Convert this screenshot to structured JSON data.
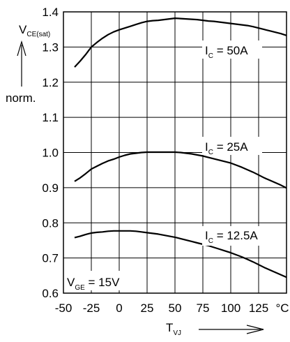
{
  "chart_data": {
    "type": "line",
    "x_ticks": [
      "-50",
      "-25",
      "0",
      "25",
      "50",
      "75",
      "100",
      "125"
    ],
    "x_unit": "°C",
    "y_ticks": [
      "0.6",
      "0.7",
      "0.8",
      "0.9",
      "1.0",
      "1.1",
      "1.2",
      "1.3",
      "1.4"
    ],
    "xlim": [
      -50,
      150
    ],
    "ylim": [
      0.6,
      1.4
    ],
    "grid": true,
    "ylabel": {
      "main": "V",
      "sub": "CE(sat)",
      "norm": "norm."
    },
    "xlabel": {
      "main": "T",
      "sub": "VJ"
    },
    "annotation": {
      "main": "V",
      "sub": "GE",
      "rest": " = 15V"
    },
    "series": [
      {
        "label_main": "I",
        "label_sub": "C",
        "label_rest": " = 50A",
        "x": [
          -40,
          -35,
          -30,
          -25,
          -20,
          -15,
          -10,
          -5,
          0,
          5,
          10,
          15,
          20,
          25,
          30,
          35,
          40,
          45,
          50,
          55,
          60,
          65,
          70,
          75,
          80,
          85,
          90,
          95,
          100,
          105,
          110,
          115,
          120,
          125,
          130,
          135,
          140,
          145,
          150
        ],
        "y": [
          1.243,
          1.26,
          1.279,
          1.3,
          1.313,
          1.325,
          1.335,
          1.343,
          1.349,
          1.354,
          1.359,
          1.364,
          1.369,
          1.373,
          1.375,
          1.376,
          1.378,
          1.38,
          1.382,
          1.381,
          1.38,
          1.379,
          1.378,
          1.376,
          1.374,
          1.373,
          1.371,
          1.369,
          1.367,
          1.365,
          1.363,
          1.361,
          1.358,
          1.354,
          1.35,
          1.346,
          1.342,
          1.338,
          1.333
        ]
      },
      {
        "label_main": "I",
        "label_sub": "C",
        "label_rest": " = 25A",
        "x": [
          -40,
          -35,
          -30,
          -25,
          -20,
          -15,
          -10,
          -5,
          0,
          5,
          10,
          15,
          20,
          25,
          30,
          35,
          40,
          45,
          50,
          55,
          60,
          65,
          70,
          75,
          80,
          85,
          90,
          95,
          100,
          105,
          110,
          115,
          120,
          125,
          130,
          135,
          140,
          145,
          150
        ],
        "y": [
          0.918,
          0.928,
          0.94,
          0.953,
          0.961,
          0.969,
          0.976,
          0.981,
          0.987,
          0.992,
          0.996,
          0.998,
          1.0,
          1.001,
          1.001,
          1.001,
          1.001,
          1.001,
          1.001,
          1.0,
          0.998,
          0.996,
          0.993,
          0.99,
          0.986,
          0.982,
          0.978,
          0.974,
          0.97,
          0.964,
          0.958,
          0.951,
          0.944,
          0.936,
          0.928,
          0.921,
          0.914,
          0.907,
          0.899
        ]
      },
      {
        "label_main": "I",
        "label_sub": "C",
        "label_rest": " = 12.5A",
        "x": [
          -40,
          -35,
          -30,
          -25,
          -20,
          -15,
          -10,
          -5,
          0,
          5,
          10,
          15,
          20,
          25,
          30,
          35,
          40,
          45,
          50,
          55,
          60,
          65,
          70,
          75,
          80,
          85,
          90,
          95,
          100,
          105,
          110,
          115,
          120,
          125,
          130,
          135,
          140,
          145,
          150
        ],
        "y": [
          0.758,
          0.762,
          0.767,
          0.771,
          0.773,
          0.774,
          0.776,
          0.777,
          0.777,
          0.777,
          0.777,
          0.776,
          0.774,
          0.772,
          0.77,
          0.768,
          0.765,
          0.762,
          0.759,
          0.755,
          0.751,
          0.747,
          0.743,
          0.739,
          0.735,
          0.73,
          0.725,
          0.72,
          0.715,
          0.709,
          0.703,
          0.696,
          0.689,
          0.681,
          0.673,
          0.666,
          0.659,
          0.652,
          0.645
        ]
      }
    ]
  }
}
